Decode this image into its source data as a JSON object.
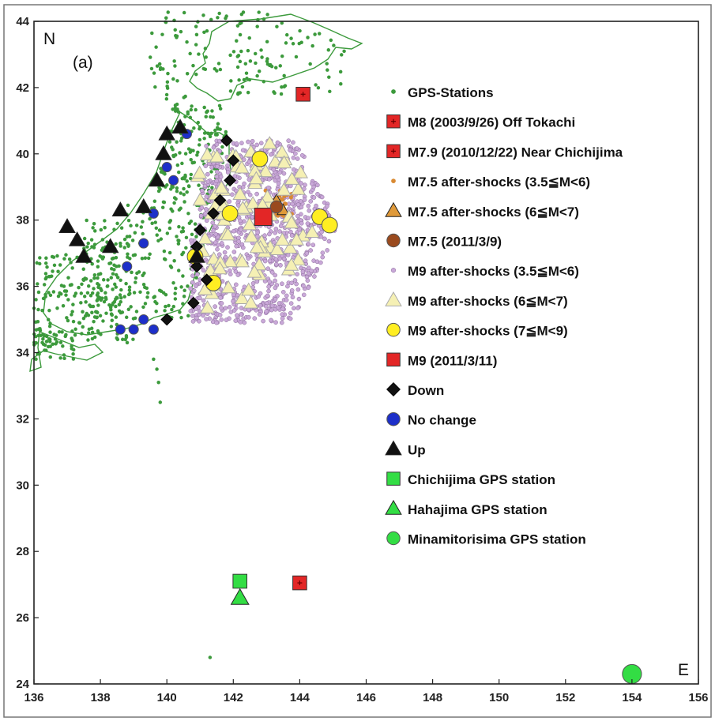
{
  "figure": {
    "panel_label": "(a)",
    "north_label": "N",
    "east_label": "E"
  },
  "colors": {
    "gps": "#3c9a3c",
    "red": "#e32626",
    "orange_small": "#d98a33",
    "orange_tri": "#e09a3a",
    "brown": "#9a4a1e",
    "purple": "#c9a8d8",
    "yellow_tri": "#f5f0b4",
    "yellow_circle": "#ffee22",
    "black": "#111111",
    "blue": "#1d2fc9",
    "bright_green": "#33dd44"
  },
  "chart_data": {
    "type": "scatter",
    "title": "",
    "xlabel": "",
    "ylabel": "",
    "xlim": [
      136,
      156
    ],
    "ylim": [
      24,
      44
    ],
    "x_ticks": [
      "136",
      "138",
      "140",
      "142",
      "144",
      "146",
      "148",
      "150",
      "152",
      "154",
      "156"
    ],
    "y_ticks": [
      "24",
      "26",
      "28",
      "30",
      "32",
      "34",
      "36",
      "38",
      "40",
      "42",
      "44"
    ],
    "grid": false,
    "legend_position": "right",
    "legend": [
      {
        "label": "GPS-Stations",
        "marker": "small-circle",
        "color": "gps"
      },
      {
        "label": "M8 (2003/9/26) Off Tokachi",
        "marker": "square-cross",
        "color": "red"
      },
      {
        "label": "M7.9 (2010/12/22) Near Chichijima",
        "marker": "square-cross",
        "color": "red"
      },
      {
        "label": "M7.5 after-shocks (3.5≦M<6)",
        "marker": "small-circle",
        "color": "orange_small"
      },
      {
        "label": "M7.5 after-shocks (6≦M<7)",
        "marker": "triangle",
        "color": "orange_tri"
      },
      {
        "label": "M7.5 (2011/3/9)",
        "marker": "circle",
        "color": "brown"
      },
      {
        "label": "M9 after-shocks (3.5≦M<6)",
        "marker": "small-circle",
        "color": "purple"
      },
      {
        "label": "M9 after-shocks (6≦M<7)",
        "marker": "triangle",
        "color": "yellow_tri"
      },
      {
        "label": "M9 after-shocks (7≦M<9)",
        "marker": "circle",
        "color": "yellow_circle"
      },
      {
        "label": "M9 (2011/3/11)",
        "marker": "square",
        "color": "red"
      },
      {
        "label": "Down",
        "marker": "diamond",
        "color": "black"
      },
      {
        "label": "No change",
        "marker": "circle",
        "color": "blue"
      },
      {
        "label": "Up",
        "marker": "triangle",
        "color": "black"
      },
      {
        "label": "Chichijima GPS station",
        "marker": "square",
        "color": "bright_green"
      },
      {
        "label": "Hahajima GPS station",
        "marker": "triangle",
        "color": "bright_green"
      },
      {
        "label": "Minamitorisima GPS station",
        "marker": "circle",
        "color": "bright_green"
      }
    ],
    "series": [
      {
        "name": "M8 (2003/9/26) Off Tokachi",
        "points": [
          [
            144.1,
            41.8
          ]
        ]
      },
      {
        "name": "M7.9 (2010/12/22) Near Chichijima",
        "points": [
          [
            144.0,
            27.05
          ]
        ]
      },
      {
        "name": "M9 (2011/3/11)",
        "points": [
          [
            142.9,
            38.1
          ]
        ]
      },
      {
        "name": "M7.5 (2011/3/9)",
        "points": [
          [
            143.3,
            38.4
          ]
        ]
      },
      {
        "name": "Chichijima GPS station",
        "points": [
          [
            142.2,
            27.1
          ]
        ]
      },
      {
        "name": "Hahajima GPS station",
        "points": [
          [
            142.2,
            26.6
          ]
        ]
      },
      {
        "name": "Minamitorisima GPS station",
        "points": [
          [
            154.0,
            24.3
          ]
        ]
      },
      {
        "name": "M9 after-shocks (7≦M<9)",
        "points": [
          [
            142.8,
            39.85
          ],
          [
            141.9,
            38.2
          ],
          [
            144.6,
            38.1
          ],
          [
            144.9,
            37.85
          ],
          [
            141.4,
            36.1
          ],
          [
            140.85,
            36.9
          ]
        ]
      },
      {
        "name": "Down",
        "points": [
          [
            141.8,
            40.4
          ],
          [
            142.0,
            39.8
          ],
          [
            141.9,
            39.2
          ],
          [
            141.6,
            38.6
          ],
          [
            141.4,
            38.2
          ],
          [
            141.0,
            37.7
          ],
          [
            140.9,
            37.2
          ],
          [
            140.9,
            36.6
          ],
          [
            141.2,
            36.2
          ],
          [
            140.8,
            35.5
          ],
          [
            140.0,
            35.0
          ]
        ]
      },
      {
        "name": "No change",
        "points": [
          [
            140.6,
            40.6
          ],
          [
            140.0,
            39.6
          ],
          [
            140.2,
            39.2
          ],
          [
            139.6,
            38.2
          ],
          [
            139.3,
            37.3
          ],
          [
            138.8,
            36.6
          ],
          [
            138.6,
            34.7
          ],
          [
            139.0,
            34.7
          ],
          [
            139.3,
            35.0
          ],
          [
            139.6,
            34.7
          ]
        ]
      },
      {
        "name": "Up",
        "points": [
          [
            140.4,
            40.8
          ],
          [
            140.0,
            40.6
          ],
          [
            139.9,
            40.0
          ],
          [
            139.7,
            39.2
          ],
          [
            139.3,
            38.4
          ],
          [
            138.6,
            38.3
          ],
          [
            137.0,
            37.8
          ],
          [
            137.3,
            37.4
          ],
          [
            137.5,
            36.9
          ],
          [
            138.3,
            37.2
          ],
          [
            140.9,
            36.9
          ]
        ]
      }
    ],
    "scattered_sets": [
      {
        "name": "GPS-Stations",
        "region": "Japanese mainland",
        "count_approx": 900
      },
      {
        "name": "M9 after-shocks (3.5≦M<6)",
        "region": "off Tohoku coast",
        "count_approx": 1000
      },
      {
        "name": "M9 after-shocks (6≦M<7)",
        "region": "off Tohoku coast",
        "count_approx": 80
      },
      {
        "name": "M7.5 after-shocks (3.5≦M<6)",
        "region": "around M7.5 epicenter",
        "count_approx": 40
      },
      {
        "name": "M7.5 after-shocks (6≦M<7)",
        "region": "around M7.5 epicenter",
        "count_approx": 3
      }
    ]
  }
}
